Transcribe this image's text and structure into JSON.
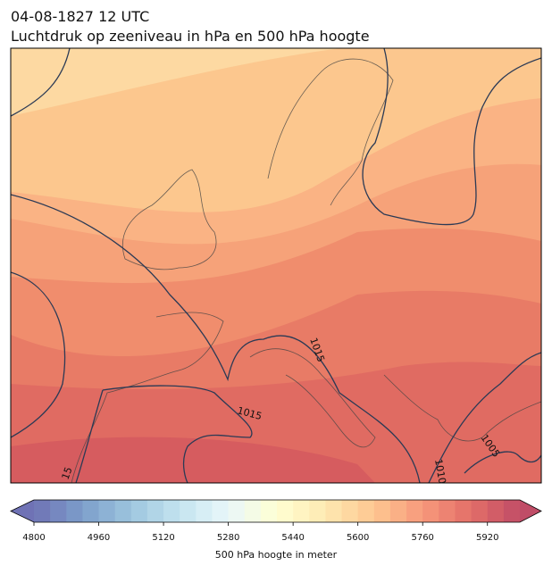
{
  "title": "04-08-1827 12 UTC",
  "subtitle": "Luchtdruk op zeeniveau in hPa en 500 hPa hoogte",
  "contour_labels": [
    "1015",
    "1015",
    "1005",
    "1010",
    "15"
  ],
  "colorbar": {
    "label": "500 hPa hoogte in meter",
    "lim": [
      4800,
      6000
    ],
    "step": 40,
    "ticks": [
      4800,
      4960,
      5120,
      5280,
      5440,
      5600,
      5760,
      5920
    ]
  }
}
